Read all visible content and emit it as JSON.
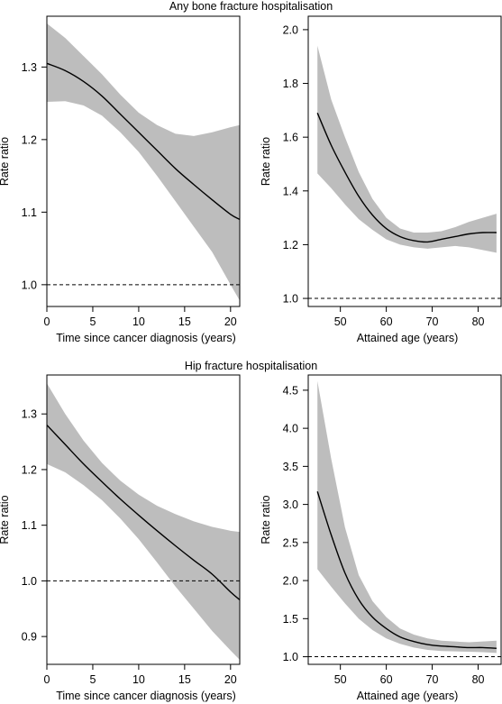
{
  "rows": [
    {
      "title": "Any bone fracture hospitalisation"
    },
    {
      "title": "Hip fracture hospitalisation"
    }
  ],
  "colors": {
    "band": "#bdbdbd",
    "line": "#000000",
    "reference": "#000000"
  },
  "chart_data": [
    {
      "type": "line",
      "xlabel": "Time since cancer diagnosis (years)",
      "ylabel": "Rate ratio",
      "xlim": [
        0,
        21
      ],
      "ylim": [
        0.97,
        1.37
      ],
      "xticks": [
        0,
        5,
        10,
        15,
        20
      ],
      "yticks": [
        1.0,
        1.1,
        1.2,
        1.3
      ],
      "ytick_labels": [
        "1.0",
        "1.1",
        "1.2",
        "1.3"
      ],
      "reference_line": 1.0,
      "series": [
        {
          "x": [
            0,
            2,
            4,
            6,
            8,
            10,
            12,
            14,
            16,
            18,
            20,
            21
          ],
          "y": [
            1.305,
            1.295,
            1.28,
            1.26,
            1.235,
            1.21,
            1.185,
            1.16,
            1.138,
            1.117,
            1.097,
            1.09
          ],
          "lower": [
            1.252,
            1.253,
            1.247,
            1.233,
            1.21,
            1.183,
            1.15,
            1.115,
            1.08,
            1.045,
            1.0,
            0.978
          ],
          "upper": [
            1.36,
            1.34,
            1.315,
            1.29,
            1.262,
            1.237,
            1.22,
            1.208,
            1.205,
            1.21,
            1.217,
            1.22
          ]
        }
      ]
    },
    {
      "type": "line",
      "xlabel": "Attained age (years)",
      "ylabel": "Rate ratio",
      "xlim": [
        43,
        85
      ],
      "ylim": [
        0.97,
        2.05
      ],
      "xticks": [
        50,
        60,
        70,
        80
      ],
      "yticks": [
        1.0,
        1.2,
        1.4,
        1.6,
        1.8,
        2.0
      ],
      "ytick_labels": [
        "1.0",
        "1.2",
        "1.4",
        "1.6",
        "1.8",
        "2.0"
      ],
      "reference_line": 1.0,
      "series": [
        {
          "x": [
            45,
            48,
            51,
            54,
            57,
            60,
            63,
            66,
            69,
            72,
            75,
            78,
            81,
            84
          ],
          "y": [
            1.69,
            1.57,
            1.47,
            1.38,
            1.31,
            1.26,
            1.23,
            1.215,
            1.21,
            1.22,
            1.23,
            1.24,
            1.245,
            1.245
          ],
          "lower": [
            1.465,
            1.41,
            1.35,
            1.295,
            1.255,
            1.22,
            1.2,
            1.19,
            1.185,
            1.19,
            1.195,
            1.19,
            1.18,
            1.17
          ],
          "upper": [
            1.94,
            1.74,
            1.6,
            1.47,
            1.37,
            1.3,
            1.26,
            1.245,
            1.245,
            1.25,
            1.265,
            1.285,
            1.3,
            1.315
          ]
        }
      ]
    },
    {
      "type": "line",
      "xlabel": "Time since cancer diagnosis (years)",
      "ylabel": "Rate ratio",
      "xlim": [
        0,
        21
      ],
      "ylim": [
        0.85,
        1.37
      ],
      "xticks": [
        0,
        5,
        10,
        15,
        20
      ],
      "yticks": [
        0.9,
        1.0,
        1.1,
        1.2,
        1.3
      ],
      "ytick_labels": [
        "0.9",
        "1.0",
        "1.1",
        "1.2",
        "1.3"
      ],
      "reference_line": 1.0,
      "series": [
        {
          "x": [
            0,
            2,
            4,
            6,
            8,
            10,
            12,
            14,
            16,
            18,
            20,
            21
          ],
          "y": [
            1.28,
            1.245,
            1.21,
            1.178,
            1.147,
            1.118,
            1.09,
            1.063,
            1.037,
            1.012,
            0.98,
            0.966
          ],
          "lower": [
            1.21,
            1.195,
            1.172,
            1.145,
            1.112,
            1.075,
            1.033,
            0.99,
            0.95,
            0.91,
            0.875,
            0.858
          ],
          "upper": [
            1.355,
            1.3,
            1.252,
            1.212,
            1.18,
            1.155,
            1.135,
            1.12,
            1.107,
            1.097,
            1.09,
            1.088
          ]
        }
      ]
    },
    {
      "type": "line",
      "xlabel": "Attained age (years)",
      "ylabel": "Rate ratio",
      "xlim": [
        43,
        85
      ],
      "ylim": [
        0.9,
        4.7
      ],
      "xticks": [
        50,
        60,
        70,
        80
      ],
      "yticks": [
        1.0,
        1.5,
        2.0,
        2.5,
        3.0,
        3.5,
        4.0,
        4.5
      ],
      "ytick_labels": [
        "1.0",
        "1.5",
        "2.0",
        "2.5",
        "3.0",
        "3.5",
        "4.0",
        "4.5"
      ],
      "reference_line": 1.0,
      "series": [
        {
          "x": [
            45,
            48,
            51,
            54,
            57,
            60,
            63,
            66,
            69,
            72,
            75,
            78,
            81,
            84
          ],
          "y": [
            3.17,
            2.6,
            2.1,
            1.75,
            1.52,
            1.37,
            1.26,
            1.2,
            1.16,
            1.14,
            1.13,
            1.12,
            1.12,
            1.11
          ],
          "lower": [
            2.15,
            1.92,
            1.7,
            1.5,
            1.35,
            1.24,
            1.17,
            1.12,
            1.09,
            1.075,
            1.07,
            1.065,
            1.06,
            1.05
          ],
          "upper": [
            4.62,
            3.6,
            2.7,
            2.07,
            1.73,
            1.52,
            1.37,
            1.29,
            1.24,
            1.21,
            1.2,
            1.19,
            1.2,
            1.21
          ]
        }
      ]
    }
  ]
}
